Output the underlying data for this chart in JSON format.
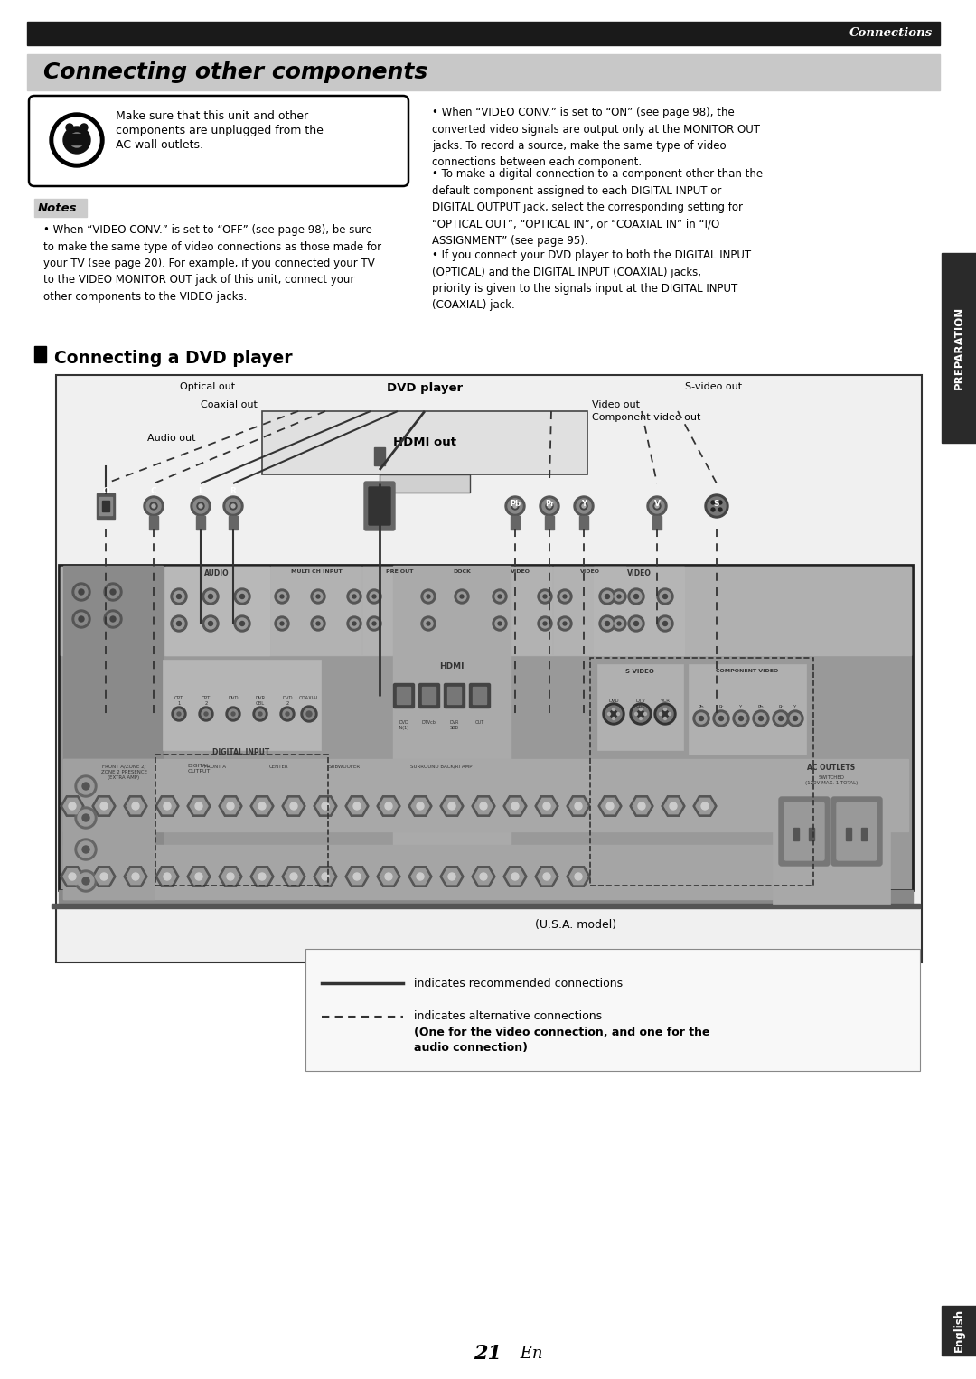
{
  "page_bg": "#ffffff",
  "top_bar_color": "#1a1a1a",
  "top_bar_text": "Connections",
  "top_bar_text_color": "#ffffff",
  "section_title_bg": "#c8c8c8",
  "section_title_text": "Connecting other components",
  "warning_text_line1": "Make sure that this unit and other",
  "warning_text_line2": "components are unplugged from the",
  "warning_text_line3": "AC wall outlets.",
  "right_col_bullet1": "When “VIDEO CONV.” is set to “ON” (see page 98), the\nconverted video signals are output only at the MONITOR OUT\njacks. To record a source, make the same type of video\nconnections between each component.",
  "right_col_bullet2": "To make a digital connection to a component other than the\ndefault component assigned to each DIGITAL INPUT or\nDIGITAL OUTPUT jack, select the corresponding setting for\n“OPTICAL OUT”, “OPTICAL IN”, or “COAXIAL IN” in “I/O\nASSIGNMENT” (see page 95).",
  "right_col_bullet3": "If you connect your DVD player to both the DIGITAL INPUT\n(OPTICAL) and the DIGITAL INPUT (COAXIAL) jacks,\npriority is given to the signals input at the DIGITAL INPUT\n(COAXIAL) jack.",
  "notes_title": "Notes",
  "note1": "When “VIDEO CONV.” is set to “OFF” (see page 98), be sure\nto make the same type of video connections as those made for\nyour TV (see page 20). For example, if you connected your TV\nto the VIDEO MONITOR OUT jack of this unit, connect your\nother components to the VIDEO jacks.",
  "dvd_section_title": "Connecting a DVD player",
  "label_optical_out": "Optical out",
  "label_dvd_player": "DVD player",
  "label_svideo_out": "S-video out",
  "label_coaxial_out": "Coaxial out",
  "label_video_out": "Video out",
  "label_component_video_out": "Component video out",
  "label_audio_out": "Audio out",
  "label_hdmi_out": "HDMI out",
  "label_usa_model": "(U.S.A. model)",
  "legend_solid_text": "indicates recommended connections",
  "legend_dashed_line1": "indicates alternative connections",
  "legend_dashed_line2": "(One for the video connection, and one for the",
  "legend_dashed_line3": "audio connection)",
  "side_tab_text": "PREPARATION",
  "side_tab_color": "#2a2a2a",
  "bottom_tab_text": "English",
  "bottom_tab_color": "#2a2a2a",
  "page_number_text": "21",
  "page_number_suffix": " En"
}
